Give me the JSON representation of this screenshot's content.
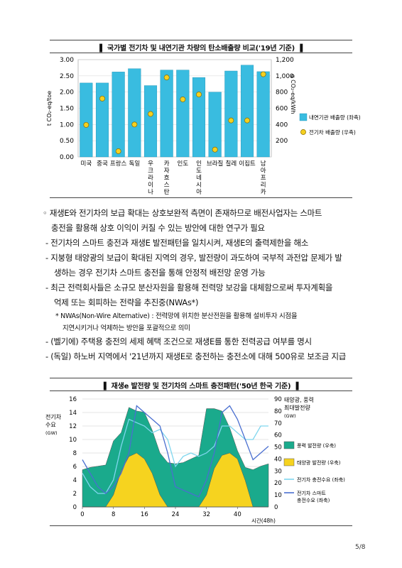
{
  "chart1": {
    "title": "▌ 국가별 전기차 및 내연기관 차량의 탄소배출량 비교('19년 기준) ▐",
    "chart_data": {
      "type": "bar",
      "categories": [
        "미국",
        "중국",
        "프랑스",
        "독일",
        "우크라이나",
        "카자흐스탄",
        "인도",
        "인도네시아",
        "브라질",
        "칠레",
        "이집트",
        "남아프리카"
      ],
      "category_labels_vertical": [
        "우크라이나",
        "카자흐스탄",
        "인도네시아",
        "남아프리카"
      ],
      "series": [
        {
          "name": "내연기관 배출량 (좌축)",
          "axis": "left",
          "values": [
            2.28,
            2.28,
            2.62,
            2.72,
            2.2,
            2.68,
            2.68,
            2.45,
            2.0,
            2.65,
            2.83,
            2.63
          ]
        },
        {
          "name": "전기차 배출량 (우축)",
          "axis": "right",
          "values": [
            395,
            720,
            70,
            400,
            530,
            980,
            710,
            770,
            90,
            450,
            450,
            1020
          ]
        }
      ],
      "left_axis": {
        "label": "t CO₂-eq/toe",
        "ticks": [
          "0.00",
          "0.50",
          "1.00",
          "1.50",
          "2.00",
          "2.50",
          "3.00"
        ],
        "range": [
          0,
          3
        ]
      },
      "right_axis": {
        "label": "g CO₂-eq/kWh",
        "ticks": [
          "200",
          "400",
          "600",
          "800",
          "1,000",
          "1,200"
        ],
        "range": [
          0,
          1200
        ]
      },
      "colors": {
        "bar": "#39bce0",
        "dot": "#f5d020"
      }
    }
  },
  "text": {
    "p1a": "◦ 재생E와 전기차의 보급 확대는 상호보완적 측면이 존재하므로 배전사업자는 스마트",
    "p1b": "충전을 활용해 상호 이익이 커질 수 있는 방안에 대한 연구가 필요",
    "b1": "- 전기차의 스마트 충전과 재생E 발전패턴을 일치시켜, 재생E의 출력제한을 해소",
    "b2a": "- 지붕형 태양광의 보급이 확대된 지역의 경우, 발전량이 과도하여 국부적 과전압 문제가 발",
    "b2b": "생하는 경우 전기차 스마트 충전을 통해 안정적 배전망 운영 가능",
    "b3a": "- 최근 전력회사들은 소규모 분산자원을 활용해 전력망 보강을 대체함으로써 투자계획을",
    "b3b": "억제 또는 회피하는 전략을 추진중(NWAs*)",
    "n1a": "* NWAs(Non-Wire Alternative) : 전력망에 위치한 분산전원을 활용해 설비투자 시점을",
    "n1b": "지연시키거나 억제하는 방안을 포괄적으로 의미",
    "b4": "- (벨기에) 주택용 충전의 세제 혜택 조건으로 재생E를 통한 전력공급 여부를 명시",
    "b5": "- (독일) 하노버 지역에서 '21년까지 재생E로 충전하는 충전소에 대해 500유로 보조금 지급"
  },
  "chart2": {
    "title": "▌ 재생e 발전량 및 전기차의 스마트 충전패턴('50년 한국 기준) ▐",
    "chart_data": {
      "type": "area",
      "x_label": "시간(48h)",
      "x_ticks": [
        "0",
        "8",
        "16",
        "24",
        "32",
        "40"
      ],
      "x_range": [
        0,
        48
      ],
      "left_axis": {
        "label_lines": [
          "전기차",
          "수요",
          "(GW)"
        ],
        "ticks": [
          "0",
          "2",
          "4",
          "6",
          "8",
          "10",
          "12",
          "14",
          "16"
        ],
        "range": [
          0,
          16
        ]
      },
      "right_axis": {
        "label_lines": [
          "태양광, 풍력",
          "최대발전량",
          "(GW)"
        ],
        "ticks": [
          "0",
          "10",
          "20",
          "30",
          "40",
          "50",
          "60",
          "70",
          "80",
          "90"
        ],
        "range": [
          0,
          90
        ]
      },
      "series": [
        {
          "name": "풍력 발전량 (우축)",
          "axis": "right",
          "color": "#1aaa8c",
          "x": [
            0,
            2,
            4,
            6,
            8,
            10,
            12,
            14,
            16,
            18,
            20,
            22,
            24,
            26,
            28,
            30,
            32,
            34,
            36,
            38,
            40,
            42,
            44,
            46,
            48
          ],
          "y": [
            31,
            33,
            34,
            35,
            55,
            62,
            83,
            80,
            79,
            64,
            45,
            37,
            36,
            37,
            40,
            43,
            82,
            82,
            80,
            66,
            47,
            33,
            31,
            34,
            36
          ]
        },
        {
          "name": "태양광 발전량 (우축)",
          "axis": "right",
          "color": "#f6d31f",
          "x": [
            0,
            6,
            8,
            10,
            12,
            14,
            16,
            18,
            20,
            22,
            24,
            30,
            32,
            34,
            36,
            38,
            40,
            42,
            44,
            48
          ],
          "y": [
            0,
            0,
            10,
            30,
            42,
            45,
            40,
            28,
            10,
            0,
            0,
            0,
            10,
            32,
            43,
            45,
            40,
            22,
            0,
            0
          ]
        },
        {
          "name": "전기차 충전수요 (좌축)",
          "axis": "left",
          "color": "#7fd6ee",
          "x": [
            0,
            2,
            4,
            6,
            8,
            10,
            12,
            14,
            16,
            18,
            20,
            22,
            24,
            26,
            28,
            30,
            32,
            34,
            36,
            38,
            40,
            42,
            44,
            46,
            48
          ],
          "y": [
            5,
            3,
            2,
            2,
            4,
            9,
            13,
            12.5,
            12,
            11,
            11.5,
            10,
            6,
            7.5,
            8,
            7.5,
            8,
            9,
            12,
            12,
            11,
            10,
            10,
            12,
            12
          ]
        },
        {
          "name": "전기차 스마트 충전수요 (좌축)",
          "axis": "left",
          "color": "#4a6fd0",
          "x": [
            0,
            2,
            4,
            6,
            8,
            10,
            12,
            14,
            16,
            18,
            20,
            22,
            24,
            26,
            28,
            30,
            32,
            34,
            36,
            38,
            40,
            42,
            44,
            46,
            48
          ],
          "y": [
            7,
            5,
            3,
            2,
            3,
            5,
            8,
            15,
            14,
            13,
            12,
            8,
            3,
            2.5,
            2,
            1.5,
            4,
            8,
            14,
            15,
            13,
            10,
            7,
            8,
            9
          ]
        }
      ]
    }
  },
  "page": "5/8"
}
